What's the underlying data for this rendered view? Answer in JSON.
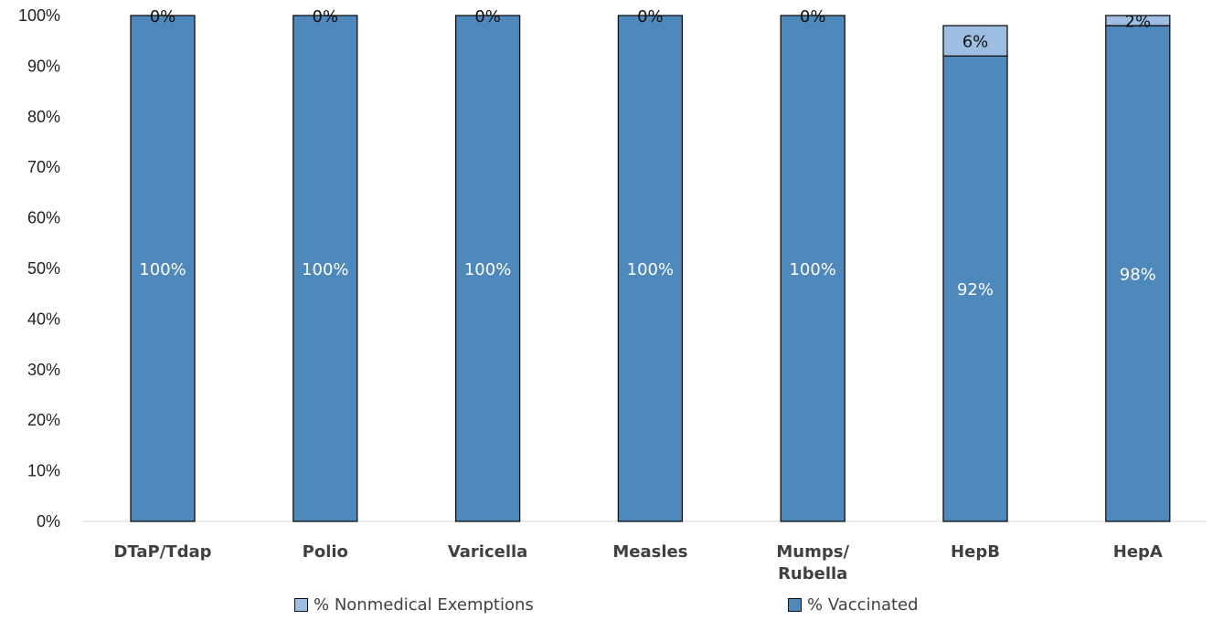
{
  "chart_data": {
    "type": "bar",
    "stacked": true,
    "categories": [
      "DTaP/Tdap",
      "Polio",
      "Varicella",
      "Measles",
      "Mumps/ Rubella",
      "HepB",
      "HepA"
    ],
    "category_lines": [
      [
        "DTaP/Tdap"
      ],
      [
        "Polio"
      ],
      [
        "Varicella"
      ],
      [
        "Measles"
      ],
      [
        "Mumps/",
        "Rubella"
      ],
      [
        "HepB"
      ],
      [
        "HepA"
      ]
    ],
    "series": [
      {
        "name": "% Vaccinated",
        "color": "#4f88bb",
        "values": [
          100,
          100,
          100,
          100,
          100,
          92,
          98
        ],
        "labels": [
          "100%",
          "100%",
          "100%",
          "100%",
          "100%",
          "92%",
          "98%"
        ]
      },
      {
        "name": "% Nonmedical Exemptions",
        "color": "#9dbde3",
        "values": [
          0,
          0,
          0,
          0,
          0,
          6,
          2
        ],
        "labels": [
          "0%",
          "0%",
          "0%",
          "0%",
          "0%",
          "6%",
          "2%"
        ]
      }
    ],
    "ylim": [
      0,
      100
    ],
    "yticks": [
      "0%",
      "10%",
      "20%",
      "30%",
      "40%",
      "50%",
      "60%",
      "70%",
      "80%",
      "90%",
      "100%"
    ],
    "legend_position": "bottom",
    "grid": false
  },
  "legend": {
    "nonmedical_label": "% Nonmedical Exemptions",
    "vaccinated_label": "% Vaccinated"
  }
}
